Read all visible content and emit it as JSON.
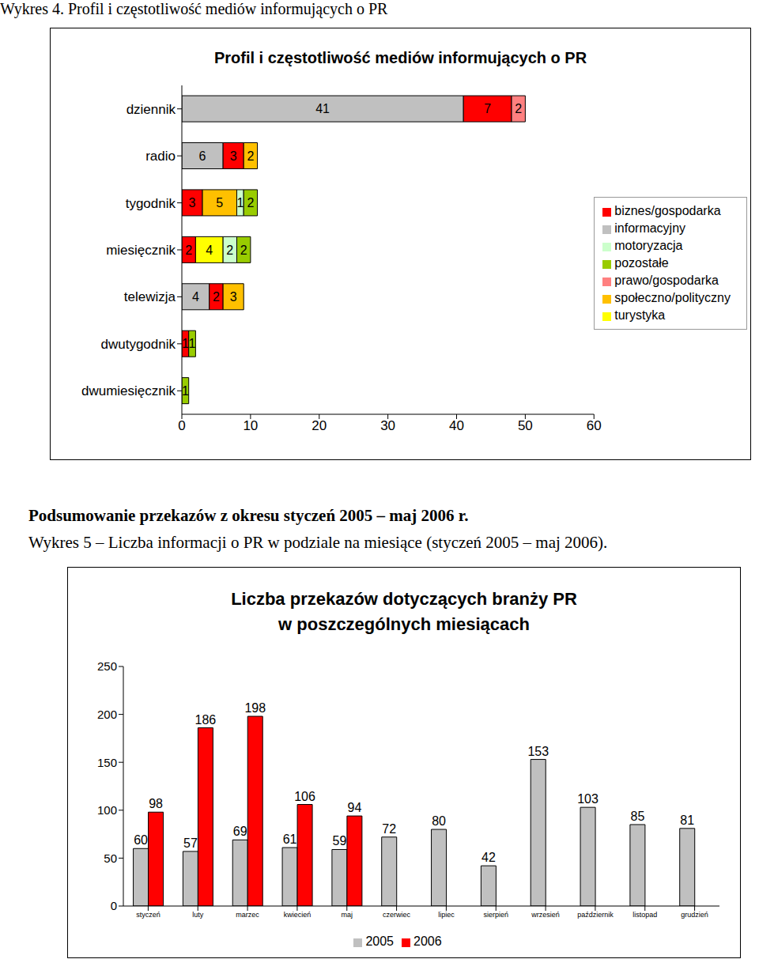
{
  "document": {
    "figure4_caption": "Wykres 4. Profil i częstotliwość mediów informujących o PR",
    "section_heading": "Podsumowanie przekazów z okresu styczeń 2005 – maj 2006 r.",
    "figure5_caption": "Wykres 5 – Liczba informacji o PR w podziale na miesiące (styczeń 2005 – maj 2006)."
  },
  "chart_data": [
    {
      "type": "bar",
      "title": "Profil i częstotliwość mediów informujących o PR",
      "orientation": "horizontal",
      "stacked": true,
      "data_labels": true,
      "legend": "right",
      "grid": false,
      "categories": [
        "dziennik",
        "radio",
        "tygodnik",
        "miesięcznik",
        "telewizja",
        "dwutygodnik",
        "dwumiesięcznik"
      ],
      "series": [
        {
          "name": "informacyjny",
          "color": "#c0c0c0",
          "values": [
            41,
            6,
            null,
            null,
            4,
            null,
            null
          ]
        },
        {
          "name": "biznes/gospodarka",
          "color": "#ff0000",
          "values": [
            7,
            3,
            3,
            2,
            2,
            1,
            null
          ]
        },
        {
          "name": "społeczno/polityczny",
          "color": "#ffc000",
          "values": [
            null,
            2,
            5,
            null,
            3,
            null,
            null
          ]
        },
        {
          "name": "turystyka",
          "color": "#ffff00",
          "values": [
            null,
            null,
            null,
            4,
            null,
            null,
            null
          ]
        },
        {
          "name": "motoryzacja",
          "color": "#ccffcc",
          "values": [
            null,
            null,
            1,
            2,
            null,
            null,
            null
          ]
        },
        {
          "name": "prawo/gospodarka",
          "color": "#ff8080",
          "values": [
            2,
            null,
            null,
            null,
            null,
            null,
            null
          ]
        },
        {
          "name": "pozostałe",
          "color": "#99cc00",
          "values": [
            null,
            null,
            2,
            2,
            null,
            1,
            1
          ]
        }
      ],
      "xlim": [
        0,
        60
      ],
      "xticks": [
        0,
        10,
        20,
        30,
        40,
        50,
        60
      ]
    },
    {
      "type": "bar",
      "title": "Liczba przekazów dotyczących branży PR\nw poszczególnych miesiącach",
      "data_labels": true,
      "legend": "bottom",
      "grid": false,
      "categories": [
        "styczeń",
        "luty",
        "marzec",
        "kwiecień",
        "maj",
        "czerwiec",
        "lipiec",
        "sierpień",
        "wrzesień",
        "październik",
        "listopad",
        "grudzień"
      ],
      "series": [
        {
          "name": "2005",
          "color": "#c0c0c0",
          "values": [
            60,
            57,
            69,
            61,
            59,
            72,
            80,
            42,
            153,
            103,
            85,
            81
          ]
        },
        {
          "name": "2006",
          "color": "#ff0000",
          "values": [
            98,
            186,
            198,
            106,
            94,
            null,
            null,
            null,
            null,
            null,
            null,
            null
          ]
        }
      ],
      "ylim": [
        0,
        250
      ],
      "yticks": [
        0,
        50,
        100,
        150,
        200,
        250
      ]
    }
  ]
}
